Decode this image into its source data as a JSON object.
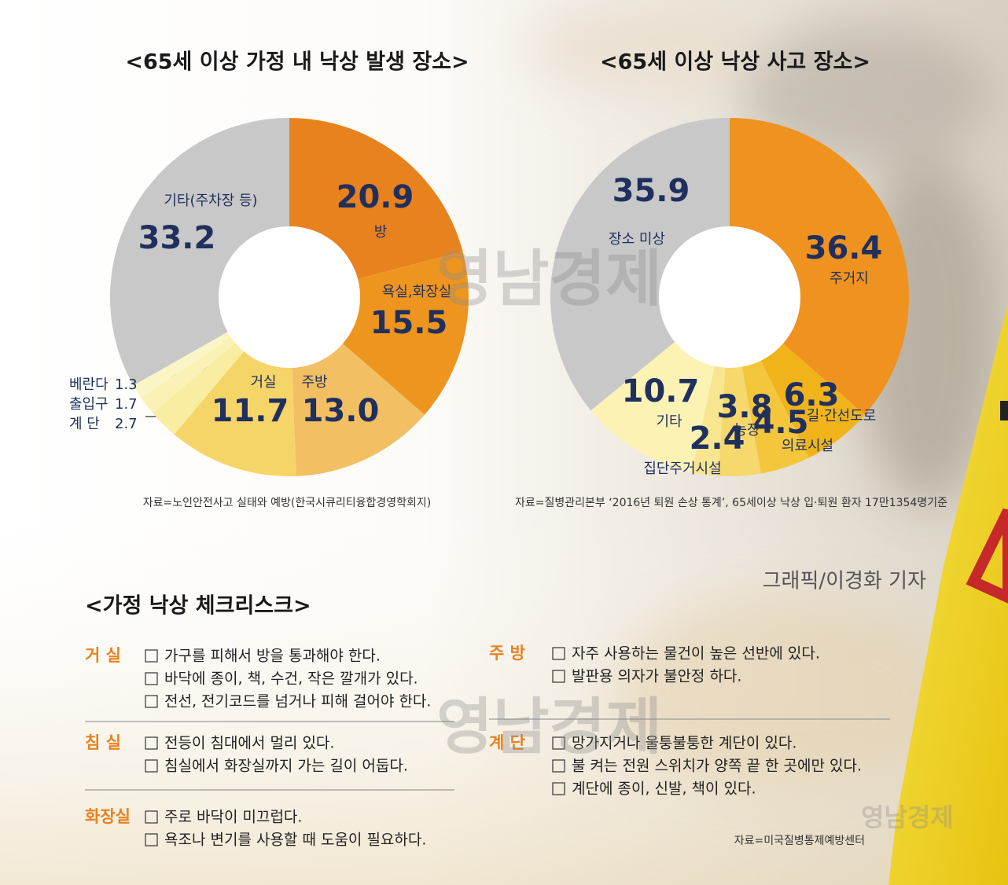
{
  "chart_data": [
    {
      "type": "pie",
      "title": "<65세 이상 가정 내 낙상 발생 장소>",
      "categories": [
        "방",
        "욕실,화장실",
        "주방",
        "거실",
        "계   단",
        "출입구",
        "베란다",
        "기타(주차장 등)"
      ],
      "values": [
        20.9,
        15.5,
        13.0,
        11.7,
        2.7,
        1.7,
        1.3,
        33.2
      ],
      "value_labels": [
        "20.9",
        "15.5",
        "13.0",
        "11.7",
        "2.7",
        "1.7",
        "1.3",
        "33.2"
      ],
      "colors": [
        "#e8821e",
        "#ee951f",
        "#f2bf63",
        "#f5d568",
        "#f9eda2",
        "#faf1b5",
        "#fbf5c6",
        "#c8c8c8"
      ],
      "group_value": 5.7,
      "source": "자료=노인안전사고 실태와 예방(한국시큐리티융합경영학회지)"
    },
    {
      "type": "pie",
      "title": "<65세 이상 낙상 사고 장소>",
      "categories": [
        "주거지",
        "길·간선도로",
        "의료시설",
        "농장",
        "집단주거시설",
        "기타",
        "장소 미상"
      ],
      "values": [
        36.4,
        6.3,
        4.5,
        3.8,
        2.4,
        10.7,
        35.9
      ],
      "colors": [
        "#f0921f",
        "#f0b41a",
        "#f3c63c",
        "#f6d86c",
        "#f8e590",
        "#fbf2b4",
        "#c8c8c8"
      ],
      "source": "자료=질병관리본부 ‘2016년 퇴원 손상 통계’, 65세이상 낙상 입·퇴원 환자 17만1354명기준"
    }
  ],
  "credit": "그래픽/이경화 기자",
  "watermark": "영남경제",
  "checklist": {
    "title": "<가정 낙상 체크리스크>",
    "sections": [
      {
        "heading": "거 실",
        "items": [
          "가구를 피해서 방을 통과해야 한다.",
          "바닥에 종이, 책, 수건, 작은 깔개가 있다.",
          "전선, 전기코드를 넘거나 피해 걸어야 한다."
        ]
      },
      {
        "heading": "침 실",
        "items": [
          "전등이 침대에서 멀리 있다.",
          "침실에서 화장실까지 가는 길이 어둡다."
        ]
      },
      {
        "heading": "화장실",
        "items": [
          "주로 바닥이 미끄럽다.",
          "욕조나 변기를 사용할 때 도움이 필요하다."
        ]
      },
      {
        "heading": "주 방",
        "items": [
          "자주 사용하는 물건이 높은 선반에 있다.",
          "발판용 의자가 불안정 하다."
        ]
      },
      {
        "heading": "계 단",
        "items": [
          "망가지거나 울퉁불퉁한 계단이 있다.",
          "불 켜는 전원 스위치가 양쪽 끝 한 곳에만 있다.",
          "계단에 종이, 신발, 책이 있다."
        ]
      }
    ],
    "source": "자료=미국질병통제예방센터"
  }
}
